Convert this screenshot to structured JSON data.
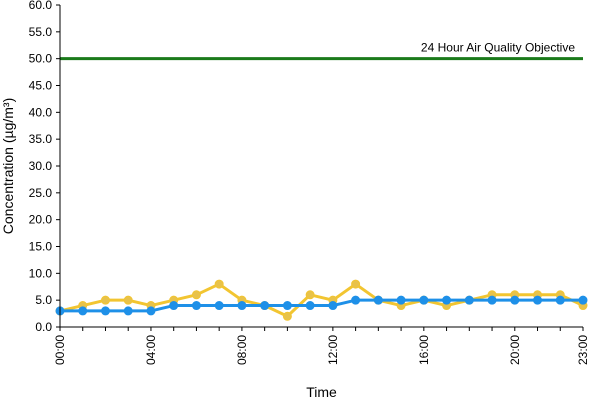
{
  "chart_data": {
    "type": "line",
    "xlabel": "Time",
    "ylabel": "Concentration (µg/m³)",
    "ylim": [
      0,
      60
    ],
    "y_ticks": [
      "0.0",
      "5.0",
      "10.0",
      "15.0",
      "20.0",
      "25.0",
      "30.0",
      "35.0",
      "40.0",
      "45.0",
      "50.0",
      "55.0",
      "60.0"
    ],
    "x_ticks": [
      "00:00",
      "04:00",
      "08:00",
      "12:00",
      "16:00",
      "20:00",
      "23:00"
    ],
    "x_tick_hours": [
      0,
      4,
      8,
      12,
      16,
      20,
      23
    ],
    "hours": [
      0,
      1,
      2,
      3,
      4,
      5,
      6,
      7,
      8,
      9,
      10,
      11,
      12,
      13,
      14,
      15,
      16,
      17,
      18,
      19,
      20,
      21,
      22,
      23
    ],
    "series": [
      {
        "color": "#f2c531",
        "marker_color": "#e8c24a",
        "values": [
          3,
          4,
          5,
          5,
          4,
          5,
          6,
          8,
          5,
          4,
          2,
          6,
          5,
          8,
          5,
          4,
          5,
          4,
          5,
          6,
          6,
          6,
          6,
          4
        ]
      },
      {
        "color": "#1e90e8",
        "marker_color": "#1e90e8",
        "values": [
          3,
          3,
          3,
          3,
          3,
          4,
          4,
          4,
          4,
          4,
          4,
          4,
          4,
          5,
          5,
          5,
          5,
          5,
          5,
          5,
          5,
          5,
          5,
          5
        ]
      }
    ],
    "reference_line": {
      "label": "24 Hour Air Quality Objective",
      "value": 50,
      "color": "#1a7a1a"
    },
    "grid": false,
    "legend": "none"
  }
}
